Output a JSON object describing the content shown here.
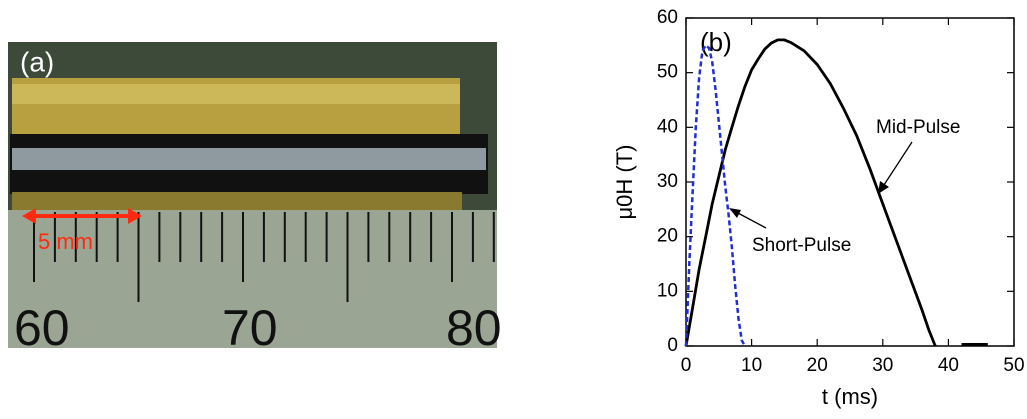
{
  "photo": {
    "panel_label": "(a)",
    "scale_label": "5 mm",
    "ruler_labels": [
      "60",
      "70",
      "80"
    ]
  },
  "chart_data": {
    "type": "line",
    "panel_label": "(b)",
    "xlabel": "t (ms)",
    "ylabel": "μ0H (T)",
    "xlim": [
      0,
      50
    ],
    "xticks": [
      0,
      10,
      20,
      30,
      40,
      50
    ],
    "ylim": [
      0,
      60
    ],
    "yticks": [
      0,
      10,
      20,
      30,
      40,
      50,
      60
    ],
    "series": [
      {
        "name": "Mid-Pulse",
        "color": "#000000",
        "dashed": false,
        "x": [
          0,
          1,
          2,
          3,
          4,
          5,
          6,
          7,
          8,
          9,
          10,
          11,
          12,
          13,
          14,
          15,
          16,
          18,
          20,
          22,
          24,
          26,
          28,
          30,
          32,
          34,
          36,
          37,
          38,
          40,
          42,
          46
        ],
        "values": [
          0,
          7,
          14,
          20,
          26,
          31,
          36,
          40,
          44,
          47.5,
          50.5,
          52.5,
          54.3,
          55.4,
          56,
          56,
          55.5,
          54,
          51.5,
          48,
          43.5,
          38.5,
          32.5,
          26,
          19.5,
          13,
          6.5,
          3,
          0,
          null,
          0.3,
          0.3
        ]
      },
      {
        "name": "Short-Pulse",
        "color": "#1f2fd0",
        "dashed": true,
        "x": [
          0,
          0.5,
          1,
          1.5,
          2,
          2.5,
          3,
          3.5,
          4,
          4.5,
          5,
          5.5,
          6,
          6.5,
          7,
          7.5,
          8,
          8.5,
          9
        ],
        "values": [
          0,
          15,
          28,
          40,
          49,
          54,
          55,
          54.5,
          52,
          47,
          41,
          35,
          29,
          24,
          18,
          11,
          5,
          1,
          0
        ]
      }
    ]
  }
}
